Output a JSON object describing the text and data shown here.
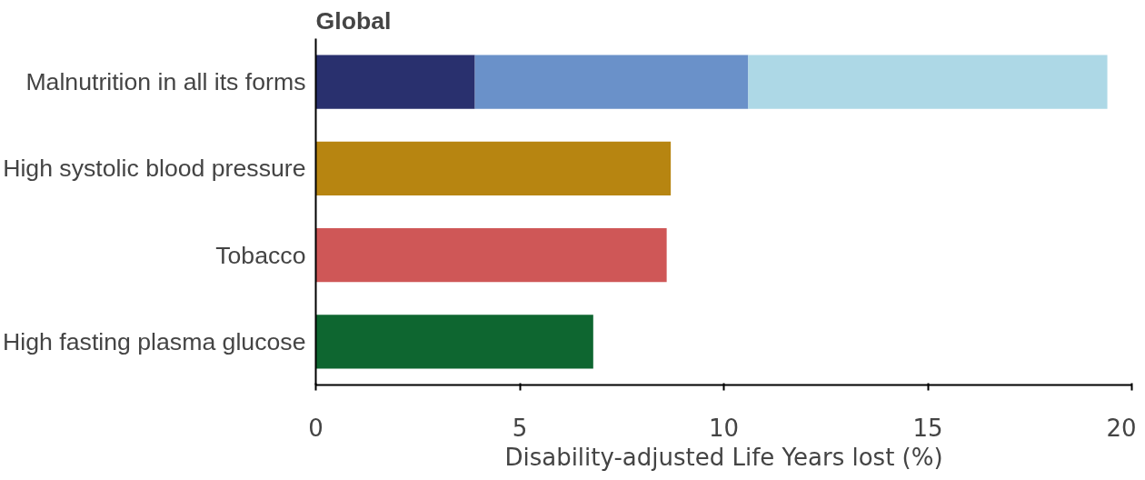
{
  "chart_data": {
    "type": "bar",
    "orientation": "horizontal",
    "stacked": true,
    "title": "Global",
    "xlabel": "Disability-adjusted Life Years lost (%)",
    "categories": [
      "Malnutrition in all its forms",
      "High systolic blood pressure",
      "Tobacco",
      "High fasting plasma glucose"
    ],
    "series": [
      {
        "colors": [
          "#29306e",
          "#b78511",
          "#cf5757",
          "#0e6630"
        ],
        "values": [
          3.9,
          8.7,
          8.6,
          6.8
        ]
      },
      {
        "color": "#6a91c9",
        "values": [
          6.7,
          null,
          null,
          null
        ]
      },
      {
        "color": "#add8e6",
        "values": [
          8.8,
          null,
          null,
          null
        ]
      }
    ],
    "xlim": [
      0,
      20
    ],
    "xticks": [
      0,
      5,
      10,
      15,
      20
    ],
    "grid": false
  }
}
